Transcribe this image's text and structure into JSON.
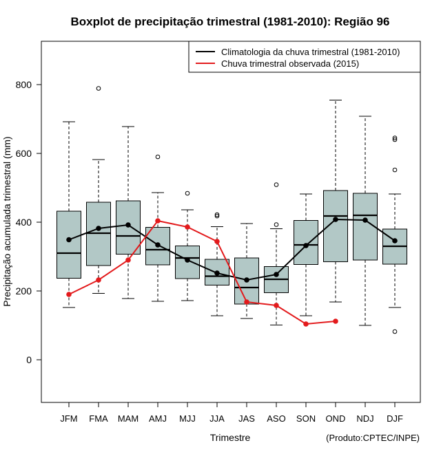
{
  "chart_data": {
    "type": "boxplot",
    "title": "Boxplot de precipitação trimestral (1981-2010): Região 96",
    "xlabel": "Trimestre",
    "ylabel": "Precipitação acumulada trimestral (mm)",
    "credit": "(Produto:CPTEC/INPE)",
    "ylim": [
      -120,
      925
    ],
    "yticks": [
      0,
      200,
      400,
      600,
      800
    ],
    "categories": [
      "JFM",
      "FMA",
      "MAM",
      "AMJ",
      "MJJ",
      "JJA",
      "JAS",
      "ASO",
      "SON",
      "OND",
      "NDJ",
      "DJF"
    ],
    "boxes": [
      {
        "label": "JFM",
        "whisker_low": 152,
        "q1": 237,
        "median": 310,
        "q3": 432,
        "whisker_high": 692,
        "outliers": []
      },
      {
        "label": "FMA",
        "whisker_low": 193,
        "q1": 274,
        "median": 368,
        "q3": 458,
        "whisker_high": 582,
        "outliers": [
          789
        ]
      },
      {
        "label": "MAM",
        "whisker_low": 178,
        "q1": 307,
        "median": 360,
        "q3": 462,
        "whisker_high": 678,
        "outliers": []
      },
      {
        "label": "AMJ",
        "whisker_low": 170,
        "q1": 276,
        "median": 320,
        "q3": 385,
        "whisker_high": 486,
        "outliers": [
          590
        ]
      },
      {
        "label": "MJJ",
        "whisker_low": 172,
        "q1": 236,
        "median": 296,
        "q3": 331,
        "whisker_high": 436,
        "outliers": [
          484
        ]
      },
      {
        "label": "JJA",
        "whisker_low": 128,
        "q1": 217,
        "median": 243,
        "q3": 292,
        "whisker_high": 387,
        "outliers": [
          418,
          422
        ]
      },
      {
        "label": "JAS",
        "whisker_low": 120,
        "q1": 162,
        "median": 210,
        "q3": 296,
        "whisker_high": 396,
        "outliers": []
      },
      {
        "label": "ASO",
        "whisker_low": 101,
        "q1": 195,
        "median": 234,
        "q3": 271,
        "whisker_high": 381,
        "outliers": [
          393,
          509
        ]
      },
      {
        "label": "SON",
        "whisker_low": 128,
        "q1": 277,
        "median": 334,
        "q3": 405,
        "whisker_high": 482,
        "outliers": []
      },
      {
        "label": "OND",
        "whisker_low": 168,
        "q1": 285,
        "median": 418,
        "q3": 492,
        "whisker_high": 755,
        "outliers": []
      },
      {
        "label": "NDJ",
        "whisker_low": 100,
        "q1": 290,
        "median": 420,
        "q3": 484,
        "whisker_high": 708,
        "outliers": []
      },
      {
        "label": "DJF",
        "whisker_low": 152,
        "q1": 278,
        "median": 330,
        "q3": 380,
        "whisker_high": 482,
        "outliers": [
          82,
          552,
          640,
          645
        ]
      }
    ],
    "series": [
      {
        "name": "Climatologia da chuva trimestral (1981-2010)",
        "color": "#000000",
        "values": [
          349,
          382,
          392,
          334,
          290,
          252,
          232,
          248,
          332,
          408,
          406,
          346
        ]
      },
      {
        "name": "Chuva trimestral observada (2015)",
        "color": "#e31a1c",
        "values": [
          190,
          232,
          290,
          404,
          386,
          344,
          168,
          158,
          104,
          112,
          null,
          null
        ]
      }
    ],
    "box_fill": "#b2c8c6",
    "legend_position": "top-right"
  }
}
